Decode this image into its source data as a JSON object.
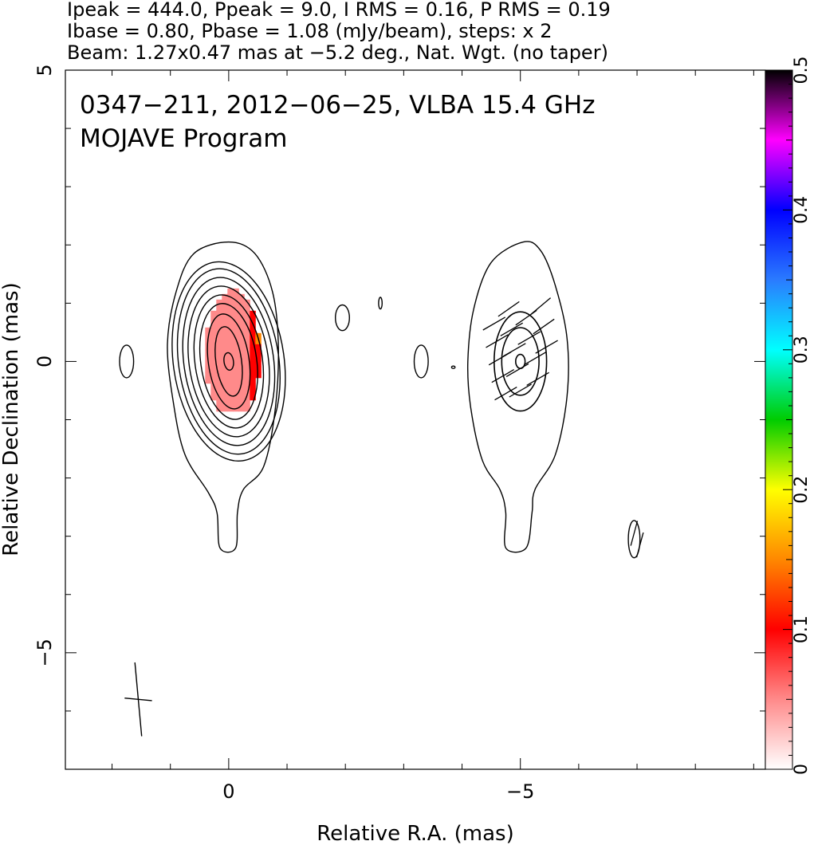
{
  "header": {
    "line1": "Ipeak = 444.0, Ppeak = 9.0, I RMS = 0.16, P RMS = 0.19",
    "line2": "Ibase = 0.80, Pbase = 1.08 (mJy/beam), steps: x 2",
    "line3": "Beam: 1.27x0.47 mas at −5.2 deg., Nat. Wgt. (no taper)"
  },
  "chart_data": [
    {
      "type": "heatmap",
      "title": "0347−211, 2012−06−25, VLBA 15.4 GHz",
      "subtitle": "MOJAVE Program",
      "xlabel": "Relative R.A. (mas)",
      "ylabel": "Relative Declination (mas)",
      "xlim": [
        2.8,
        -9.2
      ],
      "ylim": [
        -7.0,
        5.0
      ],
      "x_ticks": [
        {
          "value": 0,
          "label": "0"
        },
        {
          "value": -5,
          "label": "−5"
        }
      ],
      "y_ticks": [
        {
          "value": 5,
          "label": "5"
        },
        {
          "value": 0,
          "label": "0"
        },
        {
          "value": -5,
          "label": "−5"
        }
      ],
      "grid": false,
      "colorbar": {
        "range": [
          0,
          0.5
        ],
        "ticks": [
          {
            "value": 0,
            "label": "0"
          },
          {
            "value": 0.1,
            "label": "0.1"
          },
          {
            "value": 0.2,
            "label": "0.2"
          },
          {
            "value": 0.3,
            "label": "0.3"
          },
          {
            "value": 0.4,
            "label": "0.4"
          },
          {
            "value": 0.5,
            "label": "0.5"
          }
        ],
        "stops": [
          {
            "value": 0.0,
            "color": "#ffffff"
          },
          {
            "value": 0.05,
            "color": "#ff8a8a"
          },
          {
            "value": 0.1,
            "color": "#ff0000"
          },
          {
            "value": 0.15,
            "color": "#ff8800"
          },
          {
            "value": 0.2,
            "color": "#ffff00"
          },
          {
            "value": 0.25,
            "color": "#00cc00"
          },
          {
            "value": 0.3,
            "color": "#00ffff"
          },
          {
            "value": 0.35,
            "color": "#2a7bff"
          },
          {
            "value": 0.4,
            "color": "#0000ff"
          },
          {
            "value": 0.45,
            "color": "#ff00ff"
          },
          {
            "value": 0.5,
            "color": "#000000"
          }
        ]
      },
      "left_panel": {
        "components": [
          {
            "cx": 0.0,
            "cy": 0.0,
            "rx": [
              0.08,
              0.22,
              0.35,
              0.48,
              0.58,
              0.68,
              0.77,
              0.86,
              0.95
            ],
            "ry": [
              0.15,
              0.6,
              0.82,
              1.0,
              1.15,
              1.3,
              1.45,
              1.6,
              1.72
            ],
            "tilt": -8
          },
          {
            "cx": 1.75,
            "cy": 0.0,
            "rx": [
              0.12
            ],
            "ry": [
              0.28
            ],
            "tilt": 0
          },
          {
            "cx": -1.95,
            "cy": 0.75,
            "rx": [
              0.12
            ],
            "ry": [
              0.22
            ],
            "tilt": 0
          },
          {
            "cx": -2.6,
            "cy": 1.0,
            "rx": [
              0.03
            ],
            "ry": [
              0.1
            ],
            "tilt": 0
          }
        ],
        "outer_contour": [
          [
            0.0,
            2.05
          ],
          [
            -0.45,
            1.85
          ],
          [
            -0.75,
            1.2
          ],
          [
            -0.85,
            0.3
          ],
          [
            -0.8,
            -0.8
          ],
          [
            -0.6,
            -1.8
          ],
          [
            -0.25,
            -2.2
          ],
          [
            -0.15,
            -2.6
          ],
          [
            -0.12,
            -3.2
          ],
          [
            0.15,
            -3.2
          ],
          [
            0.2,
            -2.6
          ],
          [
            0.35,
            -2.25
          ],
          [
            0.75,
            -1.6
          ],
          [
            0.95,
            -0.7
          ],
          [
            1.05,
            0.3
          ],
          [
            0.9,
            1.2
          ],
          [
            0.6,
            1.85
          ]
        ],
        "pol_patch": {
          "x_from": 0.5,
          "x_to": -0.6,
          "y_from": -0.85,
          "y_to": 1.35
        }
      },
      "right_panel": {
        "center": [
          -5.0,
          0.0
        ],
        "contours": [
          {
            "rx": 0.08,
            "ry": 0.12
          },
          {
            "rx": 0.32,
            "ry": 0.58
          },
          {
            "rx": 0.45,
            "ry": 0.85
          }
        ],
        "outer_contour": [
          [
            -5.05,
            2.05
          ],
          [
            -4.5,
            1.7
          ],
          [
            -4.2,
            0.9
          ],
          [
            -4.1,
            0.0
          ],
          [
            -4.15,
            -0.8
          ],
          [
            -4.35,
            -1.7
          ],
          [
            -4.65,
            -2.2
          ],
          [
            -4.75,
            -2.6
          ],
          [
            -4.75,
            -3.2
          ],
          [
            -5.1,
            -3.2
          ],
          [
            -5.2,
            -2.6
          ],
          [
            -5.25,
            -2.2
          ],
          [
            -5.6,
            -1.6
          ],
          [
            -5.8,
            -0.6
          ],
          [
            -5.8,
            0.4
          ],
          [
            -5.6,
            1.3
          ],
          [
            -5.35,
            1.9
          ]
        ],
        "small_islands": [
          {
            "cx": -3.3,
            "cy": 0.0,
            "rx": 0.12,
            "ry": 0.28
          },
          {
            "cx": -3.85,
            "cy": -0.1,
            "rx": 0.03,
            "ry": 0.02
          },
          {
            "cx": -6.95,
            "cy": -3.05,
            "rx": 0.1,
            "ry": 0.32
          }
        ],
        "evpa_ticks": [
          [
            -4.55,
            0.65,
            30
          ],
          [
            -4.6,
            0.35,
            30
          ],
          [
            -4.65,
            0.05,
            30
          ],
          [
            -4.7,
            -0.25,
            30
          ],
          [
            -4.75,
            -0.55,
            30
          ],
          [
            -4.8,
            0.9,
            35
          ],
          [
            -4.85,
            0.55,
            30
          ],
          [
            -4.9,
            0.2,
            30
          ],
          [
            -4.95,
            -0.15,
            30
          ],
          [
            -5.0,
            -0.5,
            30
          ],
          [
            -5.1,
            0.75,
            35
          ],
          [
            -5.15,
            0.4,
            30
          ],
          [
            -5.25,
            0.05,
            30
          ],
          [
            -5.3,
            -0.3,
            30
          ],
          [
            -5.35,
            0.95,
            40
          ],
          [
            -5.4,
            0.6,
            35
          ],
          [
            -5.45,
            0.25,
            30
          ],
          [
            -6.95,
            -2.95,
            75
          ],
          [
            -7.05,
            -3.15,
            75
          ]
        ]
      },
      "beam": {
        "x": 1.55,
        "y": -5.8,
        "major": 1.27,
        "minor": 0.47,
        "pa": -5.2
      }
    }
  ]
}
